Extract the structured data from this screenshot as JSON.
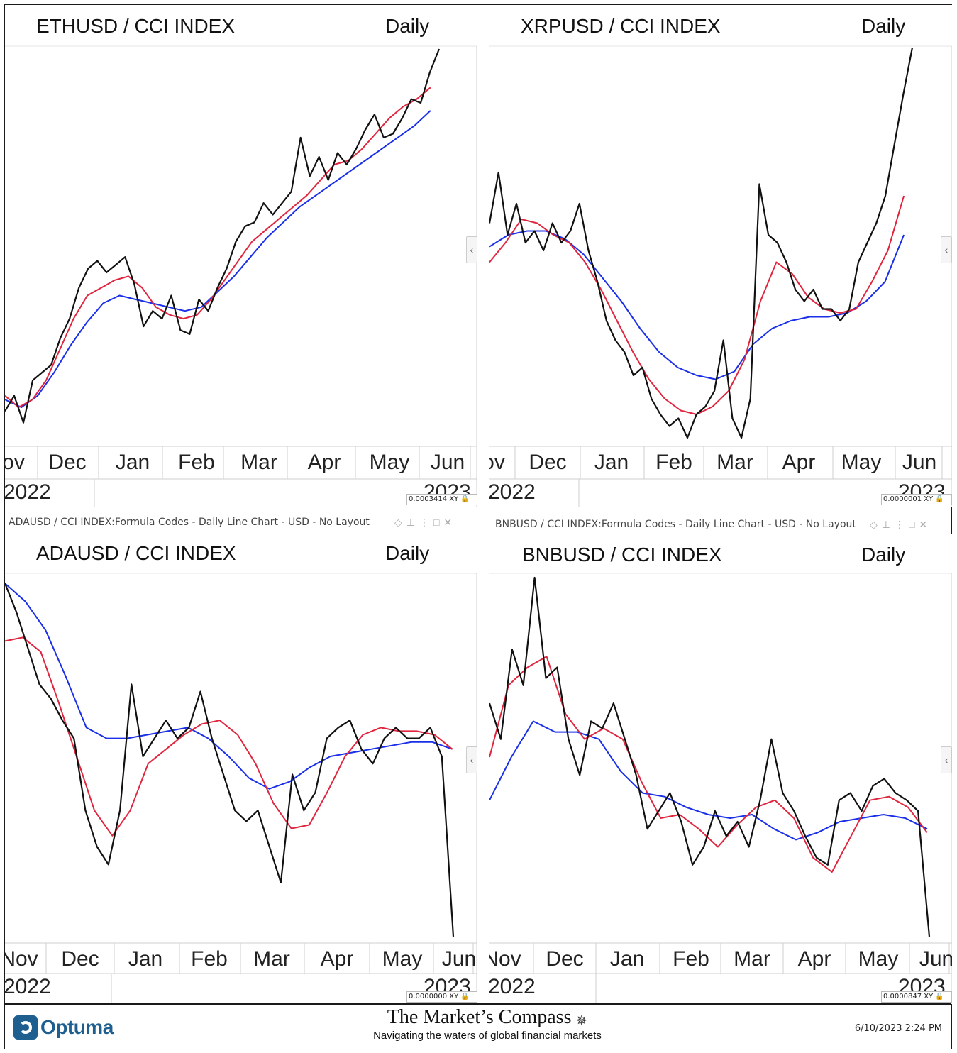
{
  "colors": {
    "price": "#111111",
    "fast_ma": "#e0263e",
    "slow_ma": "#1a2fe8",
    "grid": "#d4d4d4",
    "logo": "#1f5f8f"
  },
  "panels": [
    {
      "title": "ETHUSD / CCI INDEX",
      "period": "Daily",
      "months": [
        "ov",
        "Dec",
        "Jan",
        "Feb",
        "Mar",
        "Apr",
        "May",
        "Jun"
      ],
      "year_left": "2022",
      "year_right": "2023",
      "readout": "0.0003414",
      "header": ""
    },
    {
      "title": "XRPUSD / CCI INDEX",
      "period": "Daily",
      "months": [
        "ov",
        "Dec",
        "Jan",
        "Feb",
        "Mar",
        "Apr",
        "May",
        "Jun"
      ],
      "year_left": "2022",
      "year_right": "2023",
      "readout": "0.0000001",
      "header": ""
    },
    {
      "title": "ADAUSD / CCI INDEX",
      "period": "Daily",
      "months": [
        "Nov",
        "Dec",
        "Jan",
        "Feb",
        "Mar",
        "Apr",
        "May",
        "Jun"
      ],
      "year_left": "2022",
      "year_right": "2023",
      "readout": "0.0000000",
      "header": "ADAUSD / CCI INDEX:Formula Codes - Daily Line Chart - USD - No Layout"
    },
    {
      "title": "BNBUSD / CCI INDEX",
      "period": "Daily",
      "months": [
        "Nov",
        "Dec",
        "Jan",
        "Feb",
        "Mar",
        "Apr",
        "May",
        "Jun"
      ],
      "year_left": "2022",
      "year_right": "2023",
      "readout": "0.0000847",
      "header": "BNBUSD / CCI INDEX:Formula Codes - Daily Line Chart - USD - No Layout"
    }
  ],
  "chart_data": [
    {
      "type": "line",
      "title": "ETHUSD / CCI INDEX",
      "x_labels": [
        "Nov",
        "Dec",
        "Jan",
        "Feb",
        "Mar",
        "Apr",
        "May",
        "Jun"
      ],
      "y_scale": "relative (no labeled axis)",
      "series": [
        {
          "name": "",
          "color": "#111111",
          "values": [
            0.06,
            0.1,
            0.03,
            0.14,
            0.16,
            0.18,
            0.25,
            0.3,
            0.38,
            0.43,
            0.45,
            0.42,
            0.44,
            0.46,
            0.39,
            0.28,
            0.32,
            0.3,
            0.36,
            0.27,
            0.26,
            0.35,
            0.32,
            0.38,
            0.43,
            0.5,
            0.54,
            0.55,
            0.6,
            0.57,
            0.6,
            0.63,
            0.77,
            0.67,
            0.72,
            0.66,
            0.73,
            0.7,
            0.74,
            0.79,
            0.83,
            0.77,
            0.78,
            0.82,
            0.87,
            0.86,
            0.94,
            1.0
          ]
        },
        {
          "name": "",
          "color": "#e0263e",
          "values": [
            0.1,
            0.07,
            0.09,
            0.14,
            0.22,
            0.3,
            0.36,
            0.38,
            0.4,
            0.41,
            0.38,
            0.33,
            0.31,
            0.3,
            0.31,
            0.35,
            0.4,
            0.45,
            0.5,
            0.53,
            0.56,
            0.59,
            0.62,
            0.66,
            0.7,
            0.71,
            0.74,
            0.78,
            0.82,
            0.85,
            0.87,
            0.9
          ]
        },
        {
          "name": "",
          "color": "#1a2fe8",
          "values": [
            0.09,
            0.07,
            0.1,
            0.16,
            0.23,
            0.29,
            0.34,
            0.36,
            0.35,
            0.34,
            0.33,
            0.32,
            0.33,
            0.37,
            0.41,
            0.46,
            0.51,
            0.55,
            0.59,
            0.62,
            0.65,
            0.68,
            0.71,
            0.74,
            0.77,
            0.8,
            0.84
          ]
        }
      ]
    },
    {
      "type": "line",
      "title": "XRPUSD / CCI INDEX",
      "x_labels": [
        "Nov",
        "Dec",
        "Jan",
        "Feb",
        "Mar",
        "Apr",
        "May",
        "Jun"
      ],
      "y_scale": "relative (no labeled axis)",
      "series": [
        {
          "name": "",
          "color": "#111111",
          "values": [
            0.55,
            0.68,
            0.52,
            0.6,
            0.5,
            0.53,
            0.48,
            0.55,
            0.5,
            0.53,
            0.6,
            0.48,
            0.4,
            0.3,
            0.25,
            0.22,
            0.16,
            0.18,
            0.1,
            0.06,
            0.03,
            0.05,
            0.0,
            0.06,
            0.08,
            0.12,
            0.25,
            0.05,
            0.0,
            0.1,
            0.65,
            0.52,
            0.5,
            0.45,
            0.38,
            0.35,
            0.38,
            0.33,
            0.33,
            0.3,
            0.33,
            0.45,
            0.5,
            0.55,
            0.62,
            0.75,
            0.88,
            1.0
          ]
        },
        {
          "name": "",
          "color": "#e0263e",
          "values": [
            0.45,
            0.5,
            0.56,
            0.55,
            0.52,
            0.5,
            0.45,
            0.38,
            0.3,
            0.22,
            0.15,
            0.1,
            0.07,
            0.06,
            0.08,
            0.12,
            0.2,
            0.35,
            0.45,
            0.42,
            0.36,
            0.33,
            0.32,
            0.33,
            0.4,
            0.48,
            0.62
          ]
        },
        {
          "name": "",
          "color": "#1a2fe8",
          "values": [
            0.49,
            0.52,
            0.53,
            0.53,
            0.51,
            0.47,
            0.41,
            0.35,
            0.28,
            0.22,
            0.18,
            0.16,
            0.15,
            0.17,
            0.24,
            0.28,
            0.3,
            0.31,
            0.31,
            0.32,
            0.35,
            0.4,
            0.52
          ]
        }
      ]
    },
    {
      "type": "line",
      "title": "ADAUSD / CCI INDEX",
      "x_labels": [
        "Nov",
        "Dec",
        "Jan",
        "Feb",
        "Mar",
        "Apr",
        "May",
        "Jun"
      ],
      "y_scale": "relative (no labeled axis)",
      "series": [
        {
          "name": "",
          "color": "#111111",
          "values": [
            0.98,
            0.9,
            0.8,
            0.7,
            0.66,
            0.6,
            0.55,
            0.35,
            0.25,
            0.2,
            0.35,
            0.7,
            0.5,
            0.55,
            0.6,
            0.55,
            0.58,
            0.68,
            0.55,
            0.45,
            0.35,
            0.32,
            0.35,
            0.25,
            0.15,
            0.45,
            0.35,
            0.4,
            0.55,
            0.58,
            0.6,
            0.52,
            0.48,
            0.55,
            0.58,
            0.55,
            0.55,
            0.58,
            0.5,
            0.0
          ]
        },
        {
          "name": "",
          "color": "#e0263e",
          "values": [
            0.82,
            0.83,
            0.79,
            0.65,
            0.5,
            0.35,
            0.28,
            0.35,
            0.48,
            0.52,
            0.56,
            0.59,
            0.6,
            0.56,
            0.48,
            0.37,
            0.3,
            0.31,
            0.4,
            0.5,
            0.56,
            0.58,
            0.57,
            0.57,
            0.56,
            0.52
          ]
        },
        {
          "name": "",
          "color": "#1a2fe8",
          "values": [
            0.98,
            0.93,
            0.85,
            0.72,
            0.58,
            0.55,
            0.55,
            0.56,
            0.57,
            0.58,
            0.55,
            0.5,
            0.44,
            0.41,
            0.43,
            0.47,
            0.5,
            0.51,
            0.52,
            0.53,
            0.54,
            0.54,
            0.52
          ]
        }
      ]
    },
    {
      "type": "line",
      "title": "BNBUSD / CCI INDEX",
      "x_labels": [
        "Nov",
        "Dec",
        "Jan",
        "Feb",
        "Mar",
        "Apr",
        "May",
        "Jun"
      ],
      "y_scale": "relative (no labeled axis)",
      "series": [
        {
          "name": "",
          "color": "#111111",
          "values": [
            0.65,
            0.55,
            0.8,
            0.7,
            1.0,
            0.72,
            0.75,
            0.55,
            0.45,
            0.6,
            0.58,
            0.65,
            0.55,
            0.45,
            0.3,
            0.35,
            0.4,
            0.32,
            0.2,
            0.25,
            0.35,
            0.28,
            0.32,
            0.25,
            0.38,
            0.55,
            0.4,
            0.35,
            0.28,
            0.22,
            0.2,
            0.38,
            0.4,
            0.35,
            0.42,
            0.44,
            0.4,
            0.38,
            0.35,
            0.0
          ]
        },
        {
          "name": "",
          "color": "#e0263e",
          "values": [
            0.5,
            0.7,
            0.75,
            0.78,
            0.62,
            0.55,
            0.58,
            0.55,
            0.43,
            0.33,
            0.34,
            0.3,
            0.25,
            0.31,
            0.36,
            0.38,
            0.33,
            0.22,
            0.18,
            0.28,
            0.38,
            0.39,
            0.36,
            0.29
          ]
        },
        {
          "name": "",
          "color": "#1a2fe8",
          "values": [
            0.38,
            0.5,
            0.6,
            0.57,
            0.57,
            0.55,
            0.46,
            0.4,
            0.39,
            0.36,
            0.34,
            0.33,
            0.34,
            0.3,
            0.27,
            0.29,
            0.32,
            0.33,
            0.34,
            0.33,
            0.3
          ]
        }
      ]
    }
  ],
  "footer": {
    "logo_text": "Optuma",
    "brand_title": "The Market’s Compass",
    "brand_tagline": "Navigating the waters of global financial markets",
    "timestamp": "6/10/2023 2:24 PM"
  }
}
